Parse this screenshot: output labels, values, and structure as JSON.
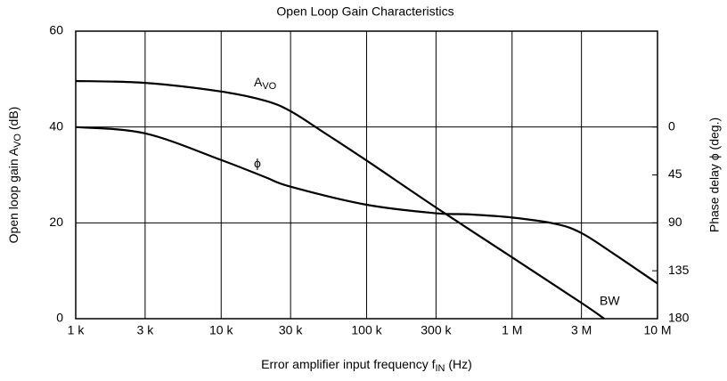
{
  "chart_data": {
    "type": "line",
    "title": "Open Loop Gain Characteristics",
    "xlabel": [
      "Error amplifier input frequency f",
      "IN",
      " (Hz)"
    ],
    "ylabel": [
      "Open loop gain A",
      "VO",
      " (dB)"
    ],
    "y2label": "Phase delay ϕ (deg.)",
    "xscale": "log",
    "xlim": [
      1000,
      10000000
    ],
    "xticks": [
      {
        "value": 1000,
        "label": "1 k"
      },
      {
        "value": 3000,
        "label": "3 k"
      },
      {
        "value": 10000,
        "label": "10 k"
      },
      {
        "value": 30000,
        "label": "30 k"
      },
      {
        "value": 100000,
        "label": "100 k"
      },
      {
        "value": 300000,
        "label": "300 k"
      },
      {
        "value": 1000000,
        "label": "1 M"
      },
      {
        "value": 3000000,
        "label": "3 M"
      },
      {
        "value": 10000000,
        "label": "10 M"
      }
    ],
    "ylim": [
      0,
      60
    ],
    "yticks": [
      0,
      20,
      40,
      60
    ],
    "y2lim": [
      180,
      -90
    ],
    "y2ticks": [
      0,
      45,
      90,
      135,
      180
    ],
    "grid": true,
    "series": [
      {
        "name": [
          "A",
          "VO"
        ],
        "color": "#000000",
        "x": [
          1000,
          3000,
          10000,
          20000,
          30000,
          50000,
          100000,
          300000,
          1000000,
          3000000,
          4300000
        ],
        "values": [
          49.6,
          49.2,
          47.4,
          45.5,
          43.3,
          39,
          33,
          23.2,
          12.8,
          3.3,
          0
        ]
      },
      {
        "name": [
          "ϕ"
        ],
        "color": "#000000",
        "axis": "y2",
        "x": [
          1000,
          3000,
          10000,
          20000,
          30000,
          100000,
          300000,
          500000,
          1000000,
          2000000,
          3000000,
          5000000,
          10000000
        ],
        "values": [
          0,
          6,
          31,
          47,
          56,
          73,
          81,
          82,
          85,
          91,
          99.6,
          119,
          147
        ]
      }
    ],
    "annotations": [
      "BW"
    ]
  }
}
